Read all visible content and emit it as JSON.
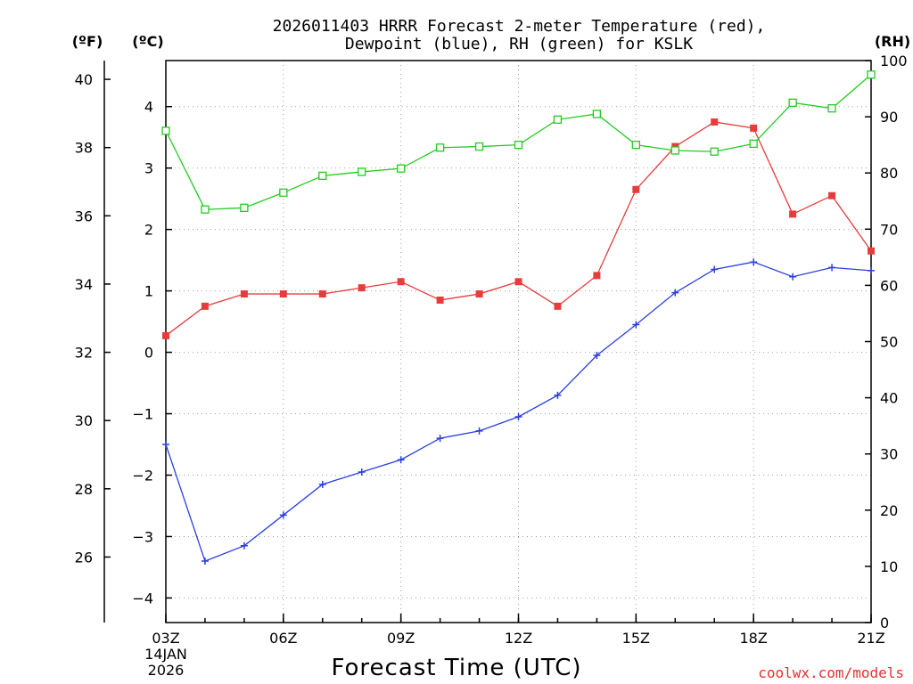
{
  "chart_data": {
    "type": "line",
    "title_line1": "2026011403 HRRR Forecast 2-meter Temperature (red),",
    "title_line2": "Dewpoint (blue), RH (green) for KSLK",
    "xlabel": "Forecast Time (UTC)",
    "credit": "coolwx.com/models",
    "left_unit_f": "(ºF)",
    "left_unit_c": "(ºC)",
    "right_unit": "(RH)",
    "x_date_line1": "14JAN",
    "x_date_line2": "2026",
    "x_hours": [
      3,
      4,
      5,
      6,
      7,
      8,
      9,
      10,
      11,
      12,
      13,
      14,
      15,
      16,
      17,
      18,
      19,
      20,
      21
    ],
    "x_tick_labels": [
      {
        "hour": 3,
        "label": "03Z"
      },
      {
        "hour": 6,
        "label": "06Z"
      },
      {
        "hour": 9,
        "label": "09Z"
      },
      {
        "hour": 12,
        "label": "12Z"
      },
      {
        "hour": 15,
        "label": "15Z"
      },
      {
        "hour": 18,
        "label": "18Z"
      },
      {
        "hour": 21,
        "label": "21Z"
      }
    ],
    "xlim": [
      3,
      21
    ],
    "ylim_c": [
      -4.4,
      4.75
    ],
    "y_ticks_c": [
      -4,
      -3,
      -2,
      -1,
      0,
      1,
      2,
      3,
      4
    ],
    "y_ticks_c_labels": [
      "−4",
      "−3",
      "−2",
      "−1",
      "0",
      "1",
      "2",
      "3",
      "4"
    ],
    "y_ticks_f": [
      26,
      28,
      30,
      32,
      34,
      36,
      38,
      40
    ],
    "ylim_rh": [
      0,
      100
    ],
    "y_ticks_rh": [
      0,
      10,
      20,
      30,
      40,
      50,
      60,
      70,
      80,
      90,
      100
    ],
    "series": [
      {
        "name": "2-meter Temperature",
        "unit": "C",
        "color": "#e83c3c",
        "marker": "filled-square",
        "values": [
          0.27,
          0.75,
          0.95,
          0.95,
          0.95,
          1.05,
          1.15,
          0.85,
          0.95,
          1.15,
          0.75,
          1.25,
          2.65,
          3.35,
          3.75,
          3.65,
          2.25,
          2.55,
          1.65
        ]
      },
      {
        "name": "Dewpoint",
        "unit": "C",
        "color": "#2b3fe0",
        "marker": "plus",
        "values": [
          -1.5,
          -3.4,
          -3.15,
          -2.65,
          -2.15,
          -1.95,
          -1.75,
          -1.4,
          -1.28,
          -1.05,
          -0.7,
          -0.05,
          0.45,
          0.97,
          1.35,
          1.47,
          1.23,
          1.38,
          1.33
        ]
      },
      {
        "name": "Relative Humidity",
        "unit": "%",
        "color": "#22cc22",
        "marker": "open-square",
        "values": [
          87.5,
          73.5,
          73.8,
          76.5,
          79.5,
          80.2,
          80.8,
          84.5,
          84.7,
          85.0,
          89.5,
          90.5,
          85.0,
          84.0,
          83.8,
          85.2,
          92.5,
          91.5,
          97.5
        ]
      }
    ]
  }
}
